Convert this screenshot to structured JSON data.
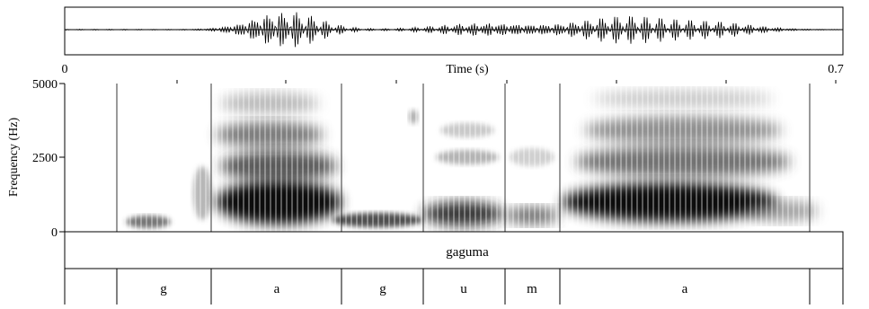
{
  "time_axis": {
    "label": "Time (s)",
    "start_label": "0",
    "end_label": "0.7"
  },
  "frequency_axis": {
    "label": "Frequency (Hz)",
    "tick_labels": [
      "5000",
      "2500",
      "0"
    ]
  },
  "word_tier": {
    "word": "gaguma"
  },
  "segment_tier": {
    "segments": [
      "g",
      "a",
      "g",
      "u",
      "m",
      "a"
    ]
  }
}
